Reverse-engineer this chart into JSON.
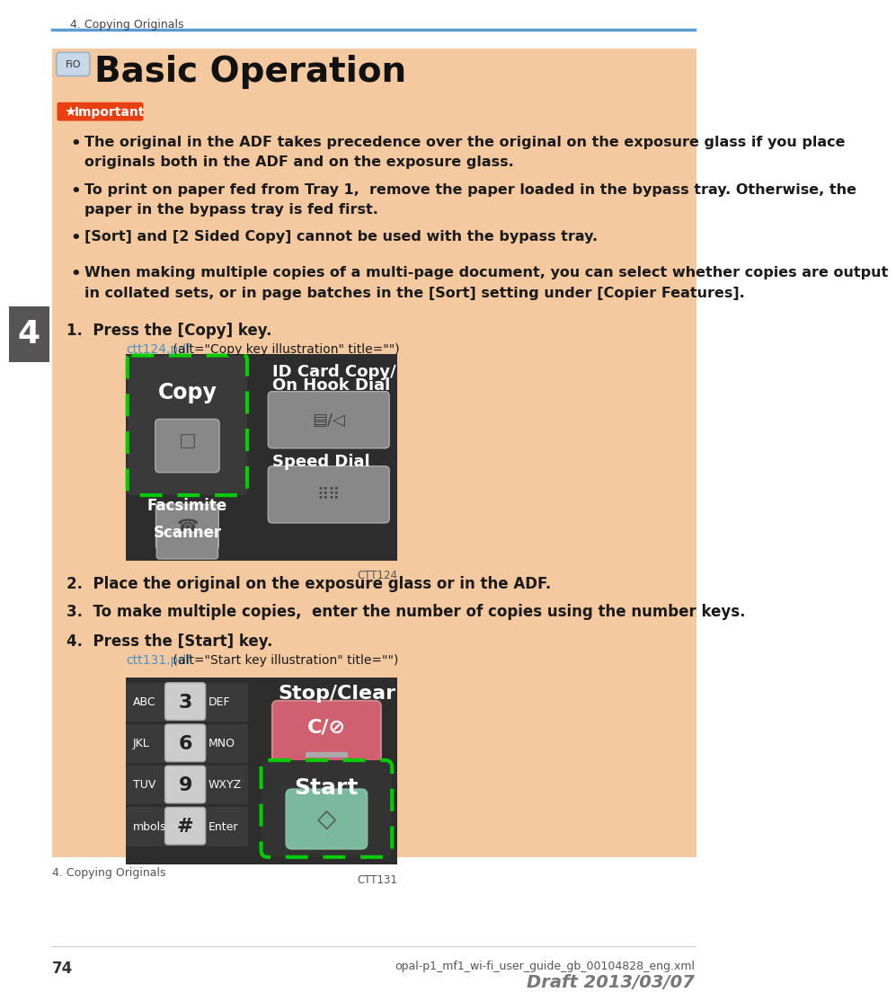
{
  "page_bg": "#ffffff",
  "content_bg": "#f5c9a0",
  "header_text": "4. Copying Originals",
  "header_line_color": "#5b9bd5",
  "title": "Basic Operation",
  "fio_label": "FiO",
  "fio_bg": "#c8d8e8",
  "fio_border": "#9ab0c8",
  "important_label": "Important",
  "important_bg": "#e84010",
  "bullet_points": [
    "The original in the ADF takes precedence over the original on the exposure glass if you place\noriginals both in the ADF and on the exposure glass.",
    "To print on paper fed from Tray 1,  remove the paper loaded in the bypass tray. Otherwise, the\npaper in the bypass tray is fed first.",
    "[Sort] and [2 Sided Copy] cannot be used with the bypass tray.",
    "When making multiple copies of a multi-page document, you can select whether copies are output\nin collated sets, or in page batches in the [Sort] setting under [Copier Features]."
  ],
  "step1": "1.  Press the [Copy] key.",
  "step1_link_colored": "ctt124.pdf",
  "step1_link_rest": " (alt=\"Copy key illustration\" title=\"\")",
  "step1_label": "CTT124",
  "step2": "2.  Place the original on the exposure glass or in the ADF.",
  "step3": "3.  To make multiple copies,  enter the number of copies using the number keys.",
  "step4": "4.  Press the [Start] key.",
  "step4_link_colored": "ctt131.pdf",
  "step4_link_rest": " (alt=\"Start key illustration\" title=\"\")",
  "step4_label": "CTT131",
  "page_number": "74",
  "footer_text": "opal-p1_mf1_wi-fi_user_guide_gb_00104828_eng.xml",
  "draft_text": "Draft 2013/03/07",
  "tab_number": "4",
  "tab_bg": "#555555",
  "tab_text_color": "#ffffff",
  "link_color": "#4a90c4",
  "body_text_color": "#1a1a1a",
  "img_dark_bg": "#2d2d2d",
  "img_btn_bg": "#4a4a4a",
  "img_btn_border": "#7a7a7a",
  "dashed_border_color": "#00cc00",
  "stop_btn_color": "#d06070",
  "start_btn_color": "#7ab8a0"
}
